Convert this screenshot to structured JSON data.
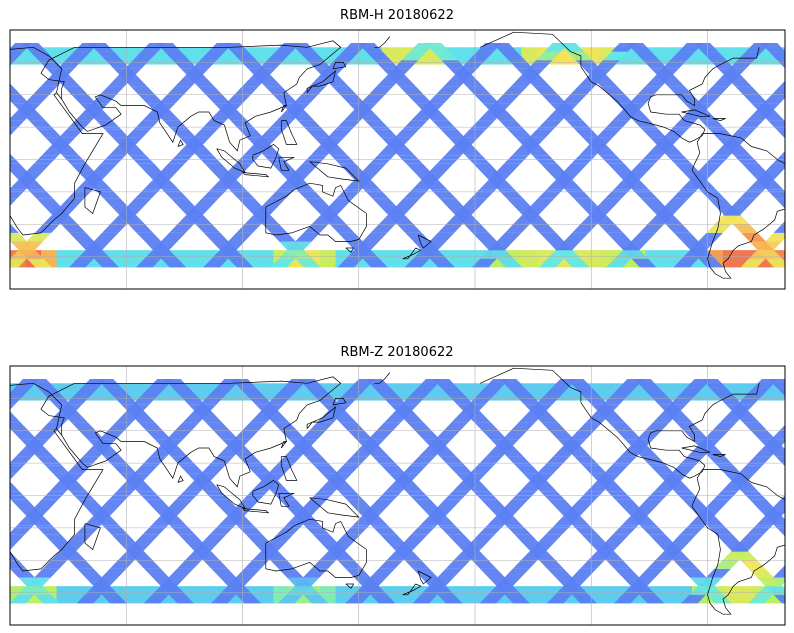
{
  "figure": {
    "panels": [
      {
        "title": "RBM-H 20180622"
      },
      {
        "title": "RBM-Z 20180622"
      }
    ]
  },
  "chart_data": [
    {
      "type": "heatmap",
      "title": "RBM-H 20180622",
      "xlabel": "",
      "ylabel": "",
      "projection": "plate-carree",
      "lon_range": [
        15,
        315
      ],
      "lat_range": [
        -60,
        60
      ],
      "data_lat_range": [
        -50,
        52
      ],
      "grid": true,
      "colormap": [
        "#5c5cf0",
        "#5aa8f5",
        "#62e8e8",
        "#b8f060",
        "#f5e35a",
        "#f5a050",
        "#e85050"
      ],
      "high_regions": [
        {
          "lon": [
            287,
            315
          ],
          "lat": [
            -50,
            -25
          ],
          "level": 0.9
        },
        {
          "lon": [
            15,
            30
          ],
          "lat": [
            -50,
            -35
          ],
          "level": 0.85
        },
        {
          "lon": [
            118,
            140
          ],
          "lat": [
            -50,
            -40
          ],
          "level": 0.45
        },
        {
          "lon": [
            200,
            260
          ],
          "lat": [
            -50,
            -42
          ],
          "level": 0.4
        },
        {
          "lon": [
            160,
            185
          ],
          "lat": [
            48,
            52
          ],
          "level": 0.55
        },
        {
          "lon": [
            213,
            250
          ],
          "lat": [
            46,
            52
          ],
          "level": 0.5
        }
      ]
    },
    {
      "type": "heatmap",
      "title": "RBM-Z 20180622",
      "xlabel": "",
      "ylabel": "",
      "projection": "plate-carree",
      "lon_range": [
        15,
        315
      ],
      "lat_range": [
        -60,
        60
      ],
      "data_lat_range": [
        -50,
        52
      ],
      "grid": true,
      "colormap": [
        "#5c5cf0",
        "#5aa8f5",
        "#62e8e8",
        "#b8f060",
        "#f5e35a",
        "#f5a050",
        "#e85050"
      ],
      "high_regions": [
        {
          "lon": [
            292,
            312
          ],
          "lat": [
            -42,
            -25
          ],
          "level": 0.7
        },
        {
          "lon": [
            15,
            35
          ],
          "lat": [
            -50,
            -38
          ],
          "level": 0.4
        },
        {
          "lon": [
            118,
            140
          ],
          "lat": [
            -50,
            -40
          ],
          "level": 0.3
        },
        {
          "lon": [
            280,
            315
          ],
          "lat": [
            -50,
            -40
          ],
          "level": 0.45
        }
      ]
    }
  ]
}
